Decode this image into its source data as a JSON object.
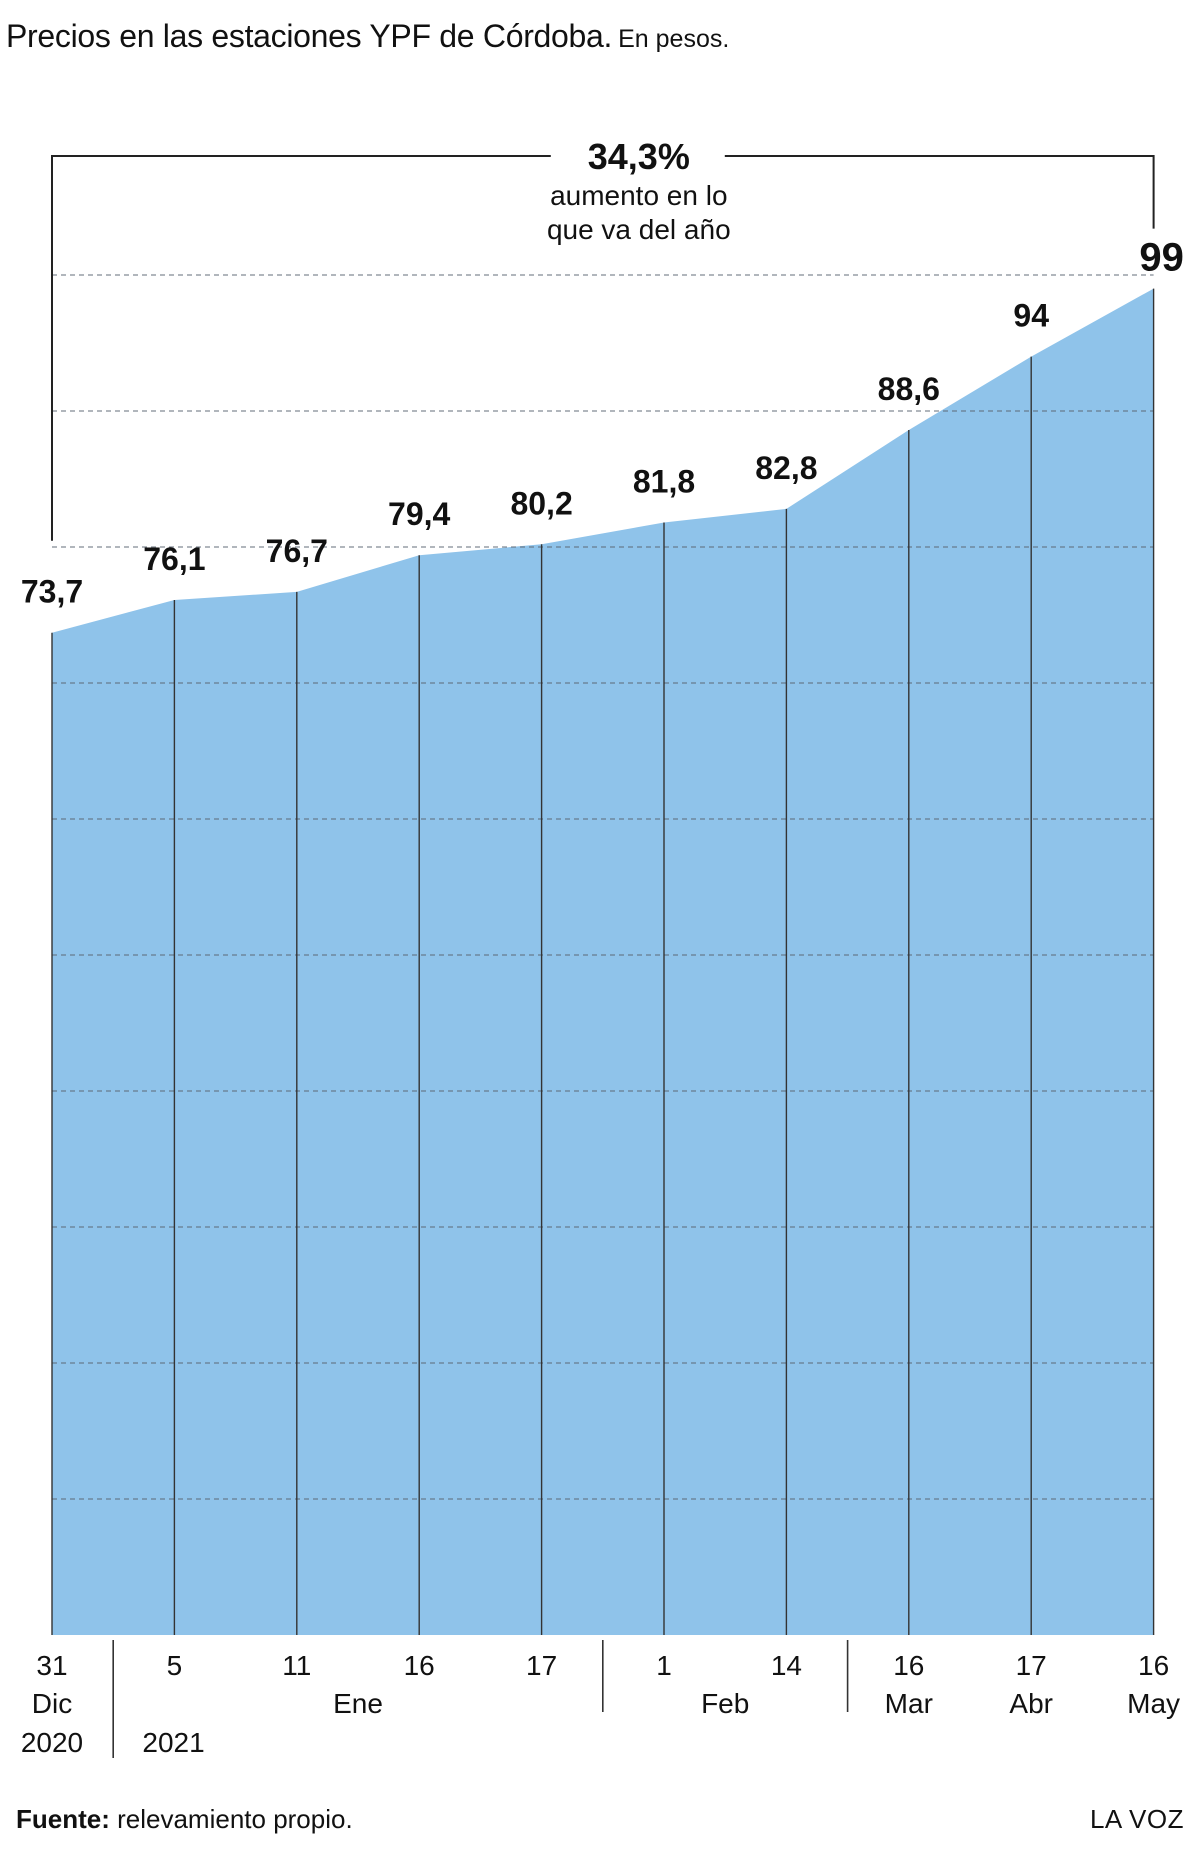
{
  "title": "Precios en las estaciones YPF de Córdoba.",
  "subtitle": "En pesos.",
  "annotation": {
    "value": "34,3%",
    "text_line1": "aumento en lo",
    "text_line2": "que va del año"
  },
  "footer": {
    "source_label": "Fuente:",
    "source_text": " relevamiento propio.",
    "brand": "LA VOZ"
  },
  "colors": {
    "area_fill": "#8fc3ea",
    "grid": "#5a6470",
    "line": "#333333"
  },
  "chart_data": {
    "type": "area",
    "title": "Precios en las estaciones YPF de Córdoba.",
    "subtitle": "En pesos.",
    "categories": [
      "31 Dic 2020",
      "5 Ene 2021",
      "11 Ene",
      "16 Ene",
      "17 Ene",
      "1 Feb",
      "14 Feb",
      "16 Mar",
      "17 Abr",
      "16 May"
    ],
    "values": [
      73.7,
      76.1,
      76.7,
      79.4,
      80.2,
      81.8,
      82.8,
      88.6,
      94,
      99
    ],
    "value_labels": [
      "73,7",
      "76,1",
      "76,7",
      "79,4",
      "80,2",
      "81,8",
      "82,8",
      "88,6",
      "94",
      "99"
    ],
    "tick_days": [
      "31",
      "5",
      "11",
      "16",
      "17",
      "1",
      "14",
      "16",
      "17",
      "16"
    ],
    "month_labels": [
      {
        "label": "Dic",
        "index": 0
      },
      {
        "label": "Ene",
        "index": 2.5
      },
      {
        "label": "Feb",
        "index": 5.5
      },
      {
        "label": "Mar",
        "index": 7
      },
      {
        "label": "Abr",
        "index": 8
      },
      {
        "label": "May",
        "index": 9
      }
    ],
    "year_labels": [
      {
        "label": "2020",
        "index": 0
      },
      {
        "label": "2021",
        "index": 1
      }
    ],
    "ylim": [
      0,
      100
    ],
    "gridlines": [
      10,
      20,
      30,
      40,
      50,
      60,
      70,
      80,
      90,
      100
    ],
    "grid": true,
    "legend": "none"
  }
}
